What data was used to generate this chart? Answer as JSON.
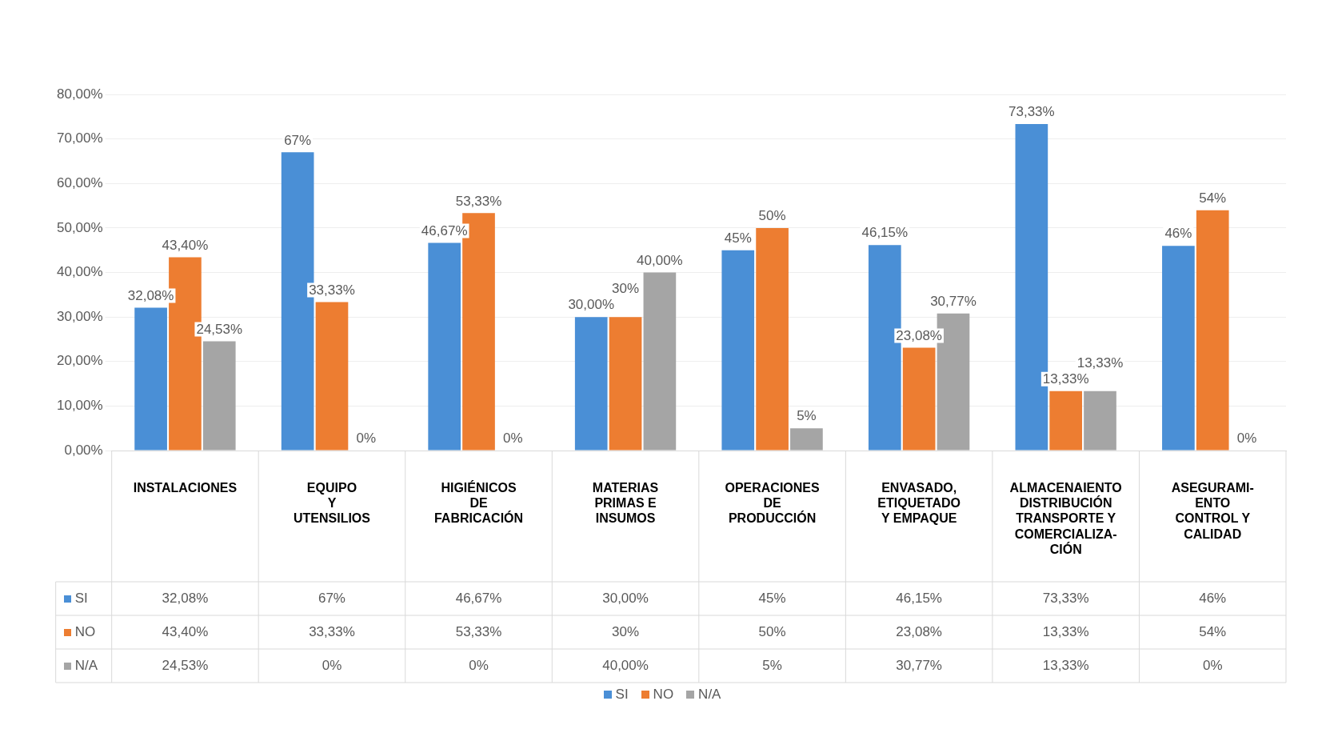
{
  "chart_data": {
    "type": "bar",
    "categories": [
      "INSTALACIONES",
      "EQUIPO\nY\nUTENSILIOS",
      "HIGIÉNICOS\nDE\nFABRICACIÓN",
      "MATERIAS\nPRIMAS E\nINSUMOS",
      "OPERACIONES\nDE\nPRODUCCIÓN",
      "ENVASADO,\nETIQUETADO\nY EMPAQUE",
      "ALMACENAIENTO\nDISTRIBUCIÓN\nTRANSPORTE Y\nCOMERCIALIZA-\nCIÓN",
      "ASEGURAMI-\nENTO\nCONTROL Y\nCALIDAD"
    ],
    "series": [
      {
        "name": "SI",
        "color": "#4a8fd6",
        "values": [
          32.08,
          67,
          46.67,
          30,
          45,
          46.15,
          73.33,
          46
        ],
        "value_labels": [
          "32,08%",
          "67%",
          "46,67%",
          "30,00%",
          "45%",
          "46,15%",
          "73,33%",
          "46%"
        ]
      },
      {
        "name": "NO",
        "color": "#ed7d31",
        "values": [
          43.4,
          33.33,
          53.33,
          30,
          50,
          23.08,
          13.33,
          54
        ],
        "value_labels": [
          "43,40%",
          "33,33%",
          "53,33%",
          "30%",
          "50%",
          "23,08%",
          "13,33%",
          "54%"
        ]
      },
      {
        "name": "N/A",
        "color": "#a5a5a5",
        "values": [
          24.53,
          0,
          0,
          40,
          5,
          30.77,
          13.33,
          0
        ],
        "value_labels": [
          "24,53%",
          "0%",
          "0%",
          "40,00%",
          "5%",
          "30,77%",
          "13,33%",
          "0%"
        ]
      }
    ],
    "ylim": [
      0,
      80
    ],
    "yticks": [
      {
        "value": 0,
        "label": "0,00%"
      },
      {
        "value": 10,
        "label": "10,00%"
      },
      {
        "value": 20,
        "label": "20,00%"
      },
      {
        "value": 30,
        "label": "30,00%"
      },
      {
        "value": 40,
        "label": "40,00%"
      },
      {
        "value": 50,
        "label": "50,00%"
      },
      {
        "value": 60,
        "label": "60,00%"
      },
      {
        "value": 70,
        "label": "70,00%"
      },
      {
        "value": 80,
        "label": "80,00%"
      }
    ],
    "grid": "y",
    "legend": "bottom"
  }
}
